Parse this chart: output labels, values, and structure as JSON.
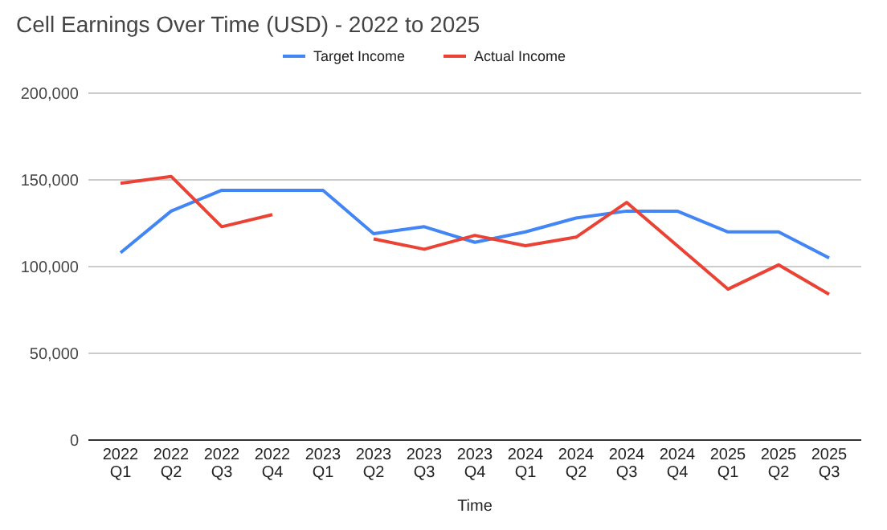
{
  "chart_data": {
    "type": "line",
    "title": "Cell Earnings Over Time (USD) - 2022 to 2025",
    "xlabel": "Time",
    "categories": [
      "2022 Q1",
      "2022 Q2",
      "2022 Q3",
      "2022 Q4",
      "2023 Q1",
      "2023 Q2",
      "2023 Q3",
      "2023 Q4",
      "2024 Q1",
      "2024 Q2",
      "2024 Q3",
      "2024 Q4",
      "2025 Q1",
      "2025 Q2",
      "2025 Q3"
    ],
    "series": [
      {
        "name": "Target Income",
        "color": "#4285f4",
        "values": [
          108000,
          132000,
          144000,
          144000,
          144000,
          119000,
          123000,
          114000,
          120000,
          128000,
          132000,
          132000,
          120000,
          120000,
          105000
        ]
      },
      {
        "name": "Actual Income",
        "color": "#ea4335",
        "values": [
          148000,
          152000,
          123000,
          130000,
          null,
          116000,
          110000,
          118000,
          112000,
          117000,
          137000,
          112000,
          87000,
          101000,
          84000
        ]
      }
    ],
    "ylim": [
      0,
      200000
    ],
    "yticks": [
      {
        "value": 0,
        "label": "0"
      },
      {
        "value": 50000,
        "label": "50,000"
      },
      {
        "value": 100000,
        "label": "100,000"
      },
      {
        "value": 150000,
        "label": "150,000"
      },
      {
        "value": 200000,
        "label": "200,000"
      }
    ],
    "grid": "y",
    "legend": "top",
    "marker": "none",
    "line_style": "solid"
  }
}
